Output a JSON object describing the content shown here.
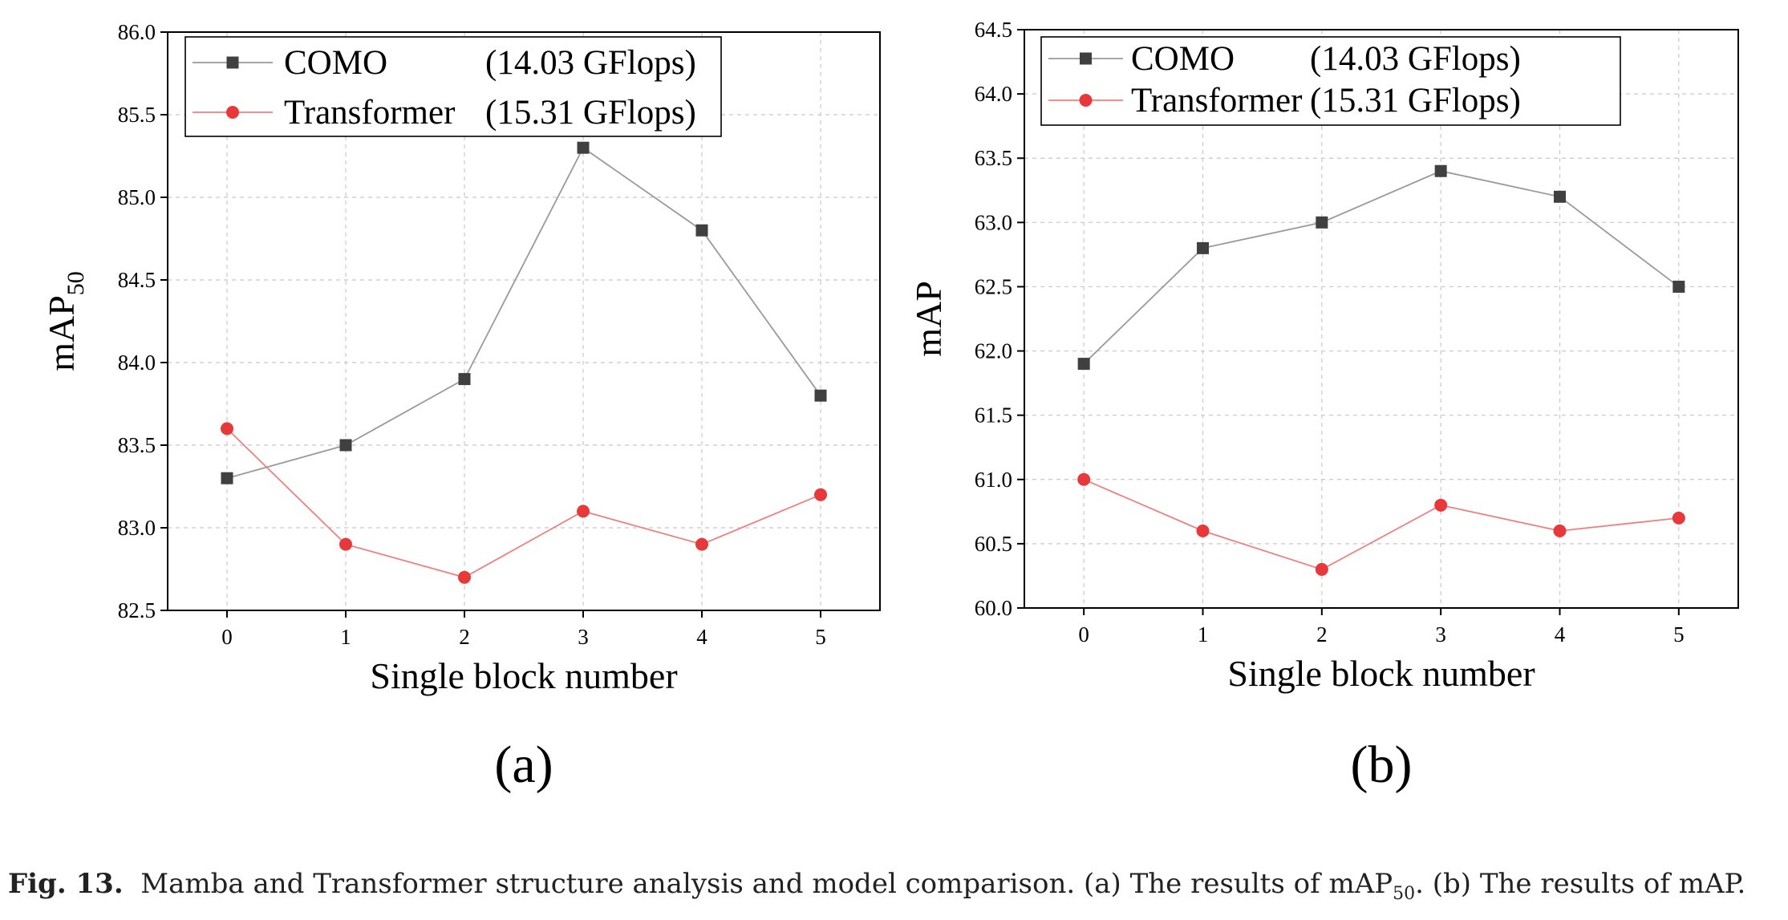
{
  "figure": {
    "caption": {
      "label": "Fig. 13.",
      "text_a": "Mamba and Transformer structure analysis and model comparison. (a) The results of mAP",
      "text_a_sub": "50",
      "text_b": ". (b) The results of mAP."
    }
  },
  "chart_data": [
    {
      "type": "line",
      "panel_label": "(a)",
      "title": "",
      "xlabel": "Single block number",
      "ylabel": "mAP",
      "ylabel_sub": "50",
      "x": [
        0,
        1,
        2,
        3,
        4,
        5
      ],
      "xlim": [
        -0.5,
        5.5
      ],
      "ylim": [
        82.5,
        86.0
      ],
      "yticks": [
        "82.5",
        "83.0",
        "83.5",
        "84.0",
        "84.5",
        "85.0",
        "85.5",
        "86.0"
      ],
      "grid": true,
      "legend_position": "top-left",
      "series": [
        {
          "name": "COMO",
          "flops": "(14.03 GFlops)",
          "marker": "square",
          "color": "#404040",
          "line_color": "#9a9a9a",
          "values": [
            83.3,
            83.5,
            83.9,
            85.3,
            84.8,
            83.8
          ]
        },
        {
          "name": "Transformer",
          "flops": "(15.31 GFlops)",
          "marker": "circle",
          "color": "#e8393a",
          "line_color": "#ef8080",
          "values": [
            83.6,
            82.9,
            82.7,
            83.1,
            82.9,
            83.2
          ]
        }
      ]
    },
    {
      "type": "line",
      "panel_label": "(b)",
      "title": "",
      "xlabel": "Single block number",
      "ylabel": "mAP",
      "ylabel_sub": "",
      "x": [
        0,
        1,
        2,
        3,
        4,
        5
      ],
      "xlim": [
        -0.5,
        5.5
      ],
      "ylim": [
        60.0,
        64.5
      ],
      "yticks": [
        "60.0",
        "60.5",
        "61.0",
        "61.5",
        "62.0",
        "62.5",
        "63.0",
        "63.5",
        "64.0",
        "64.5"
      ],
      "grid": true,
      "legend_position": "top-left",
      "series": [
        {
          "name": "COMO",
          "flops": "(14.03 GFlops)",
          "marker": "square",
          "color": "#404040",
          "line_color": "#9a9a9a",
          "values": [
            61.9,
            62.8,
            63.0,
            63.4,
            63.2,
            62.5
          ]
        },
        {
          "name": "Transformer",
          "flops": "(15.31 GFlops)",
          "marker": "circle",
          "color": "#e8393a",
          "line_color": "#ef8080",
          "values": [
            61.0,
            60.6,
            60.3,
            60.8,
            60.6,
            60.7
          ]
        }
      ]
    }
  ]
}
